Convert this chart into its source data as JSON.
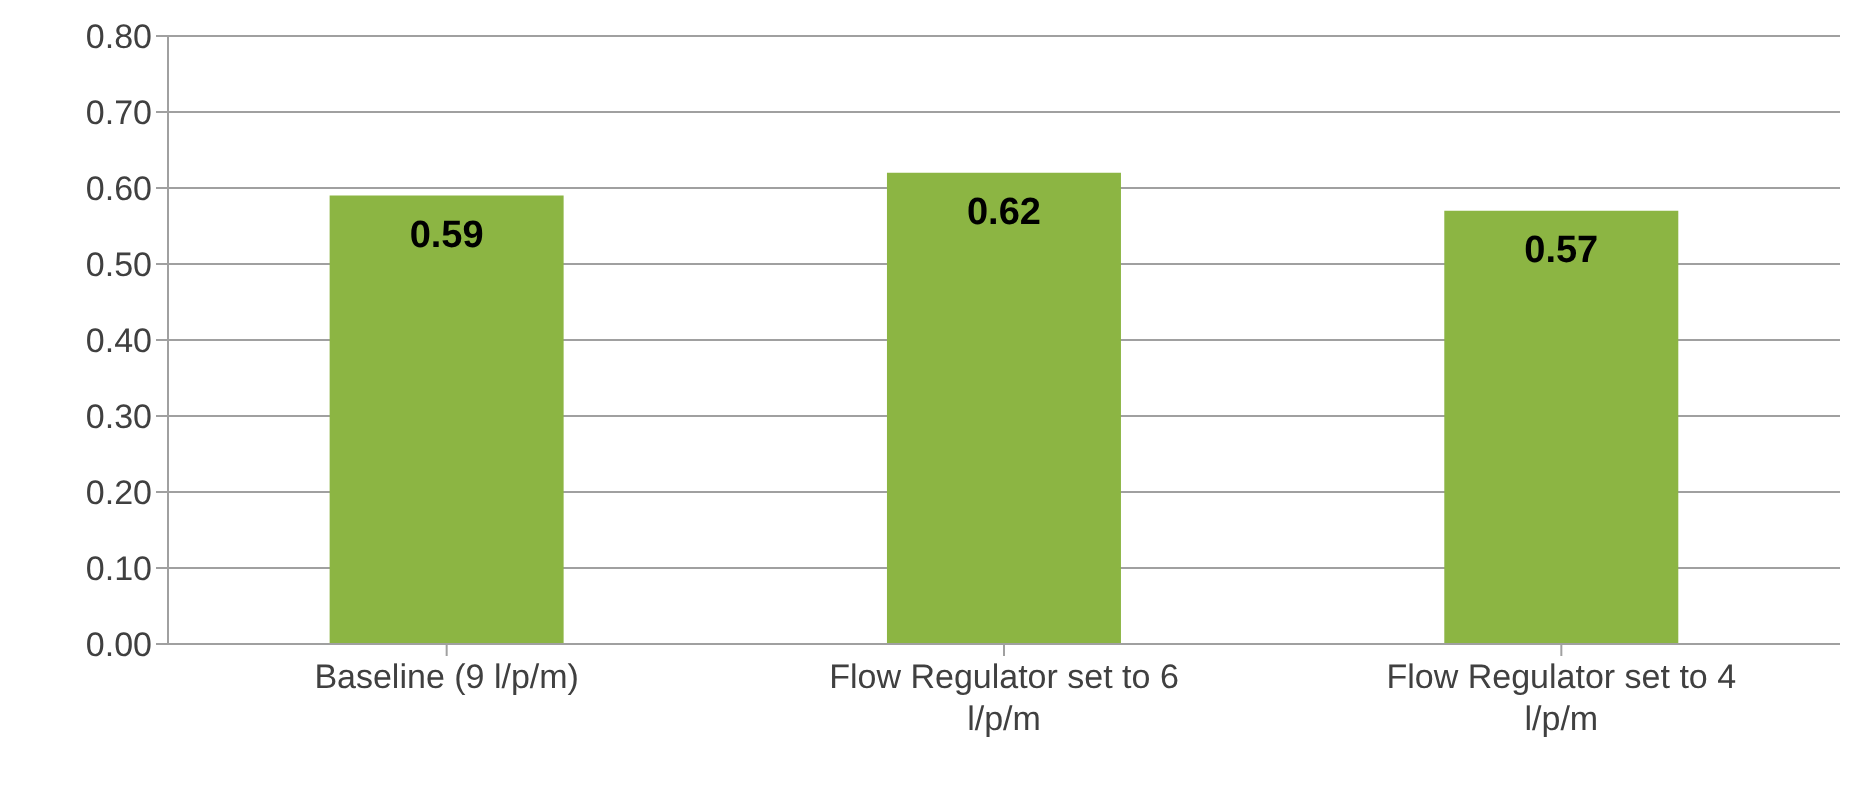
{
  "chart_data": {
    "type": "bar",
    "categories": [
      "Baseline (9 l/p/m)",
      "Flow Regulator set to 6 l/p/m",
      "Flow Regulator set to 4 l/p/m"
    ],
    "values": [
      0.59,
      0.62,
      0.57
    ],
    "color": "#8cb543",
    "ylim": [
      0,
      0.8
    ],
    "yticks": [
      "0.00",
      "0.10",
      "0.20",
      "0.30",
      "0.40",
      "0.50",
      "0.60",
      "0.70",
      "0.80"
    ],
    "grid": "y",
    "data_labels": true
  }
}
